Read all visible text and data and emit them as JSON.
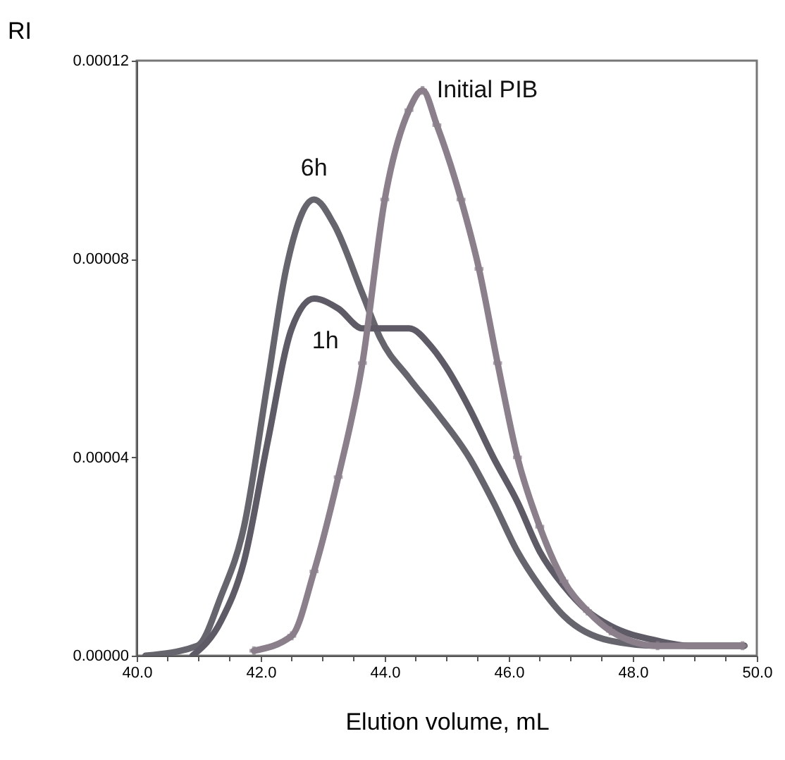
{
  "chart_data": {
    "type": "line",
    "xlabel": "Elution volume, mL",
    "ylabel": "RI",
    "xlim": [
      40,
      50
    ],
    "ylim": [
      0,
      0.00012
    ],
    "xticks": [
      {
        "value": 40,
        "label": "40.0"
      },
      {
        "value": 40.5,
        "label": null
      },
      {
        "value": 41,
        "label": null
      },
      {
        "value": 41.5,
        "label": null
      },
      {
        "value": 42,
        "label": "42.0"
      },
      {
        "value": 42.5,
        "label": null
      },
      {
        "value": 43,
        "label": null
      },
      {
        "value": 43.5,
        "label": null
      },
      {
        "value": 44,
        "label": "44.0"
      },
      {
        "value": 44.5,
        "label": null
      },
      {
        "value": 45,
        "label": null
      },
      {
        "value": 45.5,
        "label": null
      },
      {
        "value": 46,
        "label": "46.0"
      },
      {
        "value": 46.5,
        "label": null
      },
      {
        "value": 47,
        "label": null
      },
      {
        "value": 47.5,
        "label": null
      },
      {
        "value": 48,
        "label": "48.0"
      },
      {
        "value": 48.5,
        "label": null
      },
      {
        "value": 49,
        "label": null
      },
      {
        "value": 49.5,
        "label": null
      },
      {
        "value": 50,
        "label": "50.0"
      }
    ],
    "yticks": [
      {
        "value": 0,
        "label": "0.00000"
      },
      {
        "value": 4e-05,
        "label": "0.00004"
      },
      {
        "value": 8e-05,
        "label": "0.00008"
      },
      {
        "value": 0.00012,
        "label": "0.00012"
      }
    ],
    "grid": false,
    "line_style": "solid",
    "series": [
      {
        "name": "6h",
        "color": "#66656e",
        "marker": "none",
        "x": [
          40.14,
          40.98,
          41.36,
          41.73,
          42.11,
          42.41,
          42.86,
          43.18,
          43.64,
          43.93,
          44.39,
          44.84,
          45.36,
          45.75,
          46.14,
          46.5,
          46.89,
          47.64,
          48.4,
          48.93,
          49.8
        ],
        "values": [
          0.0,
          2e-06,
          1.2e-05,
          2.6e-05,
          5.5e-05,
          7.8e-05,
          9.2e-05,
          8.7e-05,
          7.3e-05,
          6.4e-05,
          5.6e-05,
          4.9e-05,
          4e-05,
          3.1e-05,
          2.1e-05,
          1.4e-05,
          8e-06,
          3e-06,
          2e-06,
          2e-06,
          2e-06
        ]
      },
      {
        "name": "1h",
        "color": "#5e5a66",
        "marker": "none",
        "x": [
          40.9,
          41.36,
          41.73,
          42.11,
          42.5,
          42.86,
          43.25,
          43.64,
          44.09,
          44.39,
          44.77,
          45.0,
          45.36,
          45.75,
          46.14,
          46.5,
          46.89,
          47.27,
          47.64,
          48.4,
          48.93,
          49.8
        ],
        "values": [
          0.0,
          7e-06,
          1.9e-05,
          4.3e-05,
          6.6e-05,
          7.2e-05,
          7e-05,
          6.6e-05,
          6.6e-05,
          6.6e-05,
          6.2e-05,
          5.8e-05,
          5e-05,
          4e-05,
          3.1e-05,
          2.1e-05,
          1.4e-05,
          9e-06,
          6e-06,
          3e-06,
          2e-06,
          2e-06
        ]
      },
      {
        "name": "Initial PIB",
        "color": "#8a7f8a",
        "marker": "cross",
        "x": [
          41.89,
          42.5,
          42.86,
          43.25,
          43.64,
          44.0,
          44.39,
          44.61,
          44.84,
          45.23,
          45.52,
          45.82,
          46.14,
          46.5,
          46.89,
          47.27,
          47.64,
          48.4,
          49.77
        ],
        "values": [
          1e-06,
          4e-06,
          1.7e-05,
          3.6e-05,
          5.9e-05,
          9.2e-05,
          0.00011,
          0.000114,
          0.000107,
          9.2e-05,
          7.8e-05,
          5.9e-05,
          4e-05,
          2.6e-05,
          1.5e-05,
          9e-06,
          5e-06,
          2e-06,
          2e-06
        ]
      }
    ]
  }
}
